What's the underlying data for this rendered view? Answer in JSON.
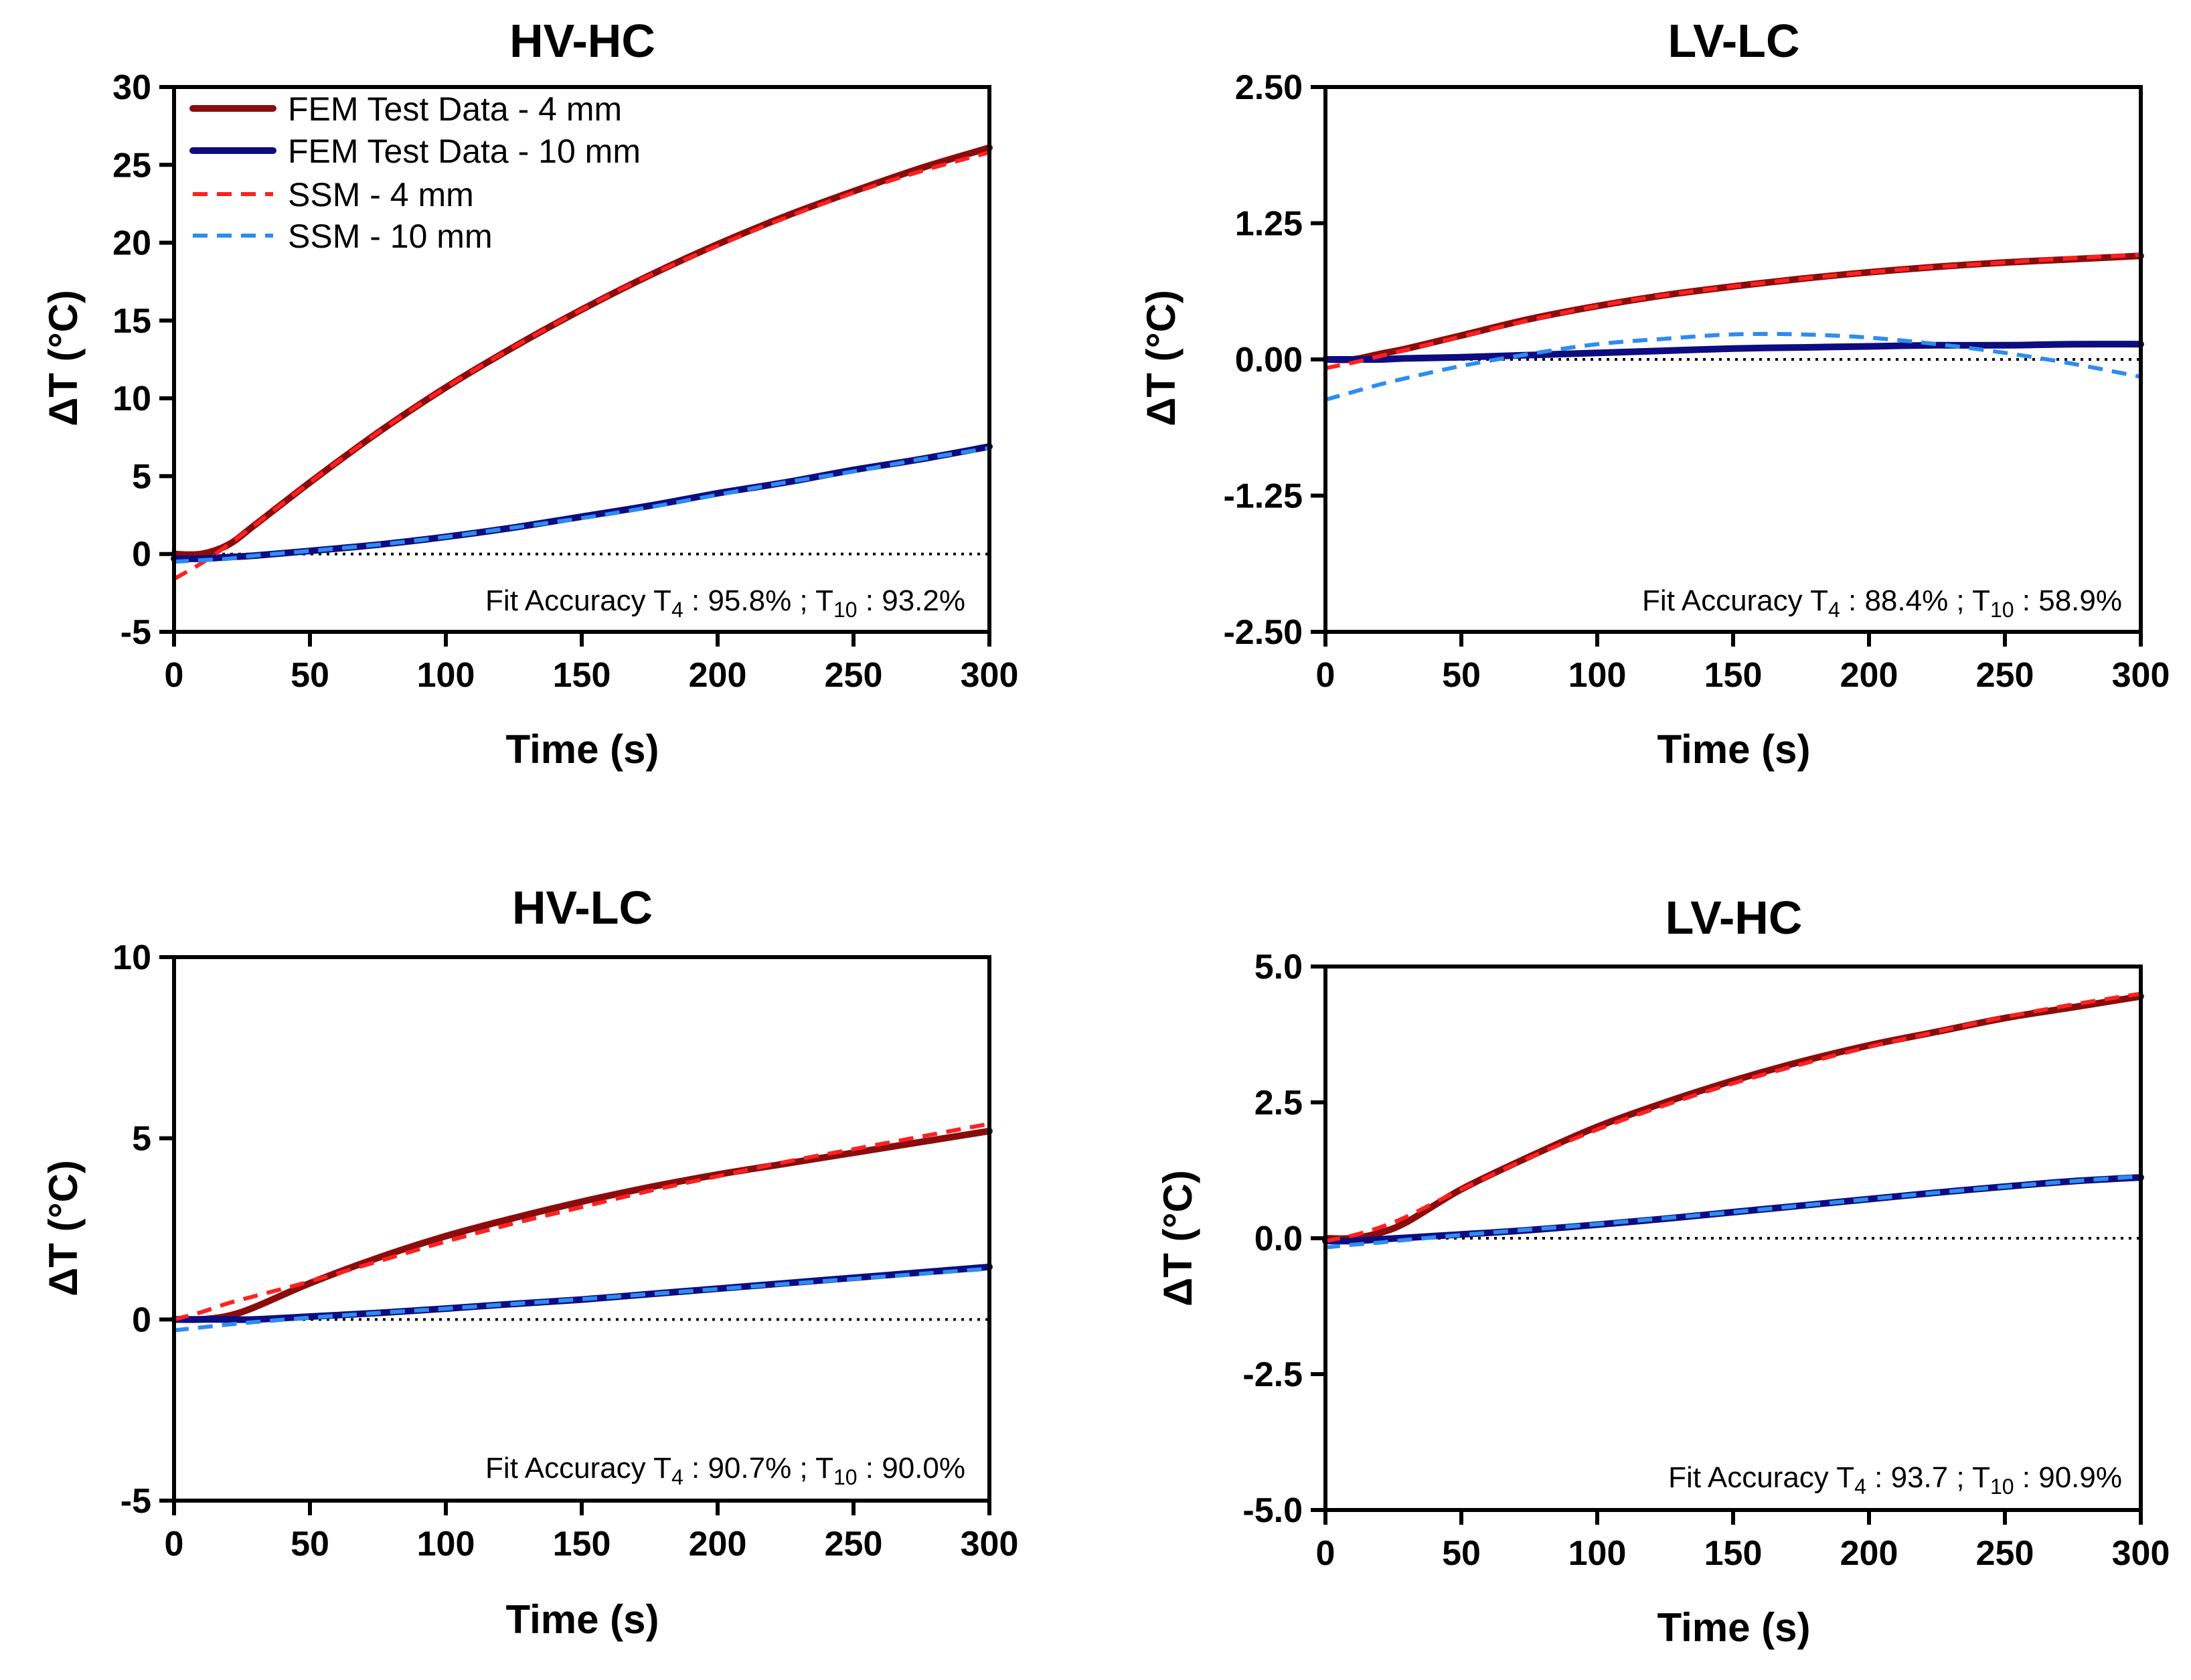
{
  "colors": {
    "fem_4mm": "#8b0c0c",
    "fem_10mm": "#0d0c80",
    "ssm_4mm": "#ff2020",
    "ssm_10mm": "#2e8cf0",
    "axis": "#000000",
    "zero_line": "#000000"
  },
  "legend": {
    "items": [
      {
        "label": "FEM Test Data - 4 mm",
        "series": "fem_4mm"
      },
      {
        "label": "FEM Test Data - 10 mm",
        "series": "fem_10mm"
      },
      {
        "label": "SSM - 4 mm",
        "series": "ssm_4mm"
      },
      {
        "label": "SSM - 10 mm",
        "series": "ssm_10mm"
      }
    ]
  },
  "chart_data": [
    {
      "id": "hv-hc",
      "type": "line",
      "title": "HV-HC",
      "xlabel": "Time (s)",
      "ylabel": "ΔT (°C)",
      "xlim": [
        0,
        300
      ],
      "ylim": [
        -5,
        30
      ],
      "x_ticks": [
        "0",
        "50",
        "100",
        "150",
        "200",
        "250",
        "300"
      ],
      "y_ticks": [
        "-5",
        "0",
        "5",
        "10",
        "15",
        "20",
        "25",
        "30"
      ],
      "zero_line": true,
      "accuracy": {
        "prefix": "Fit Accuracy T",
        "sub4": "4",
        "val4": " : 95.8% ;  T",
        "sub10": "10",
        "val10": " : 93.2%"
      },
      "x": [
        0,
        10,
        20,
        30,
        50,
        75,
        100,
        125,
        150,
        175,
        200,
        225,
        250,
        275,
        300
      ],
      "series": [
        {
          "name": "FEM Test Data - 4 mm",
          "key": "fem_4mm",
          "values": [
            0,
            0,
            0.6,
            1.9,
            4.6,
            7.8,
            10.7,
            13.3,
            15.7,
            17.9,
            19.9,
            21.7,
            23.3,
            24.8,
            26.1
          ]
        },
        {
          "name": "FEM Test Data - 10 mm",
          "key": "fem_10mm",
          "values": [
            -0.3,
            -0.3,
            -0.2,
            -0.1,
            0.2,
            0.6,
            1.1,
            1.7,
            2.4,
            3.1,
            3.9,
            4.6,
            5.4,
            6.1,
            6.9
          ]
        },
        {
          "name": "SSM - 4 mm",
          "key": "ssm_4mm",
          "values": [
            -1.6,
            -0.6,
            0.6,
            1.9,
            4.6,
            7.8,
            10.7,
            13.3,
            15.7,
            17.9,
            19.8,
            21.6,
            23.2,
            24.6,
            25.8
          ]
        },
        {
          "name": "SSM - 10 mm",
          "key": "ssm_10mm",
          "values": [
            -0.5,
            -0.4,
            -0.3,
            -0.1,
            0.2,
            0.6,
            1.1,
            1.7,
            2.3,
            3.0,
            3.8,
            4.6,
            5.3,
            6.1,
            6.8
          ]
        }
      ]
    },
    {
      "id": "lv-lc",
      "type": "line",
      "title": "LV-LC",
      "xlabel": "Time (s)",
      "ylabel": "ΔT (°C)",
      "xlim": [
        0,
        300
      ],
      "ylim": [
        -2.5,
        2.5
      ],
      "x_ticks": [
        "0",
        "50",
        "100",
        "150",
        "200",
        "250",
        "300"
      ],
      "y_ticks": [
        "-2.50",
        "-1.25",
        "0.00",
        "1.25",
        "2.50"
      ],
      "zero_line": true,
      "accuracy": {
        "prefix": "Fit Accuracy T",
        "sub4": "4",
        "val4": " : 88.4% ;  T",
        "sub10": "10",
        "val10": " : 58.9%"
      },
      "x": [
        0,
        10,
        20,
        30,
        50,
        75,
        100,
        125,
        150,
        175,
        200,
        225,
        250,
        275,
        300
      ],
      "series": [
        {
          "name": "FEM Test Data - 4 mm",
          "key": "fem_4mm",
          "values": [
            0,
            0,
            0.05,
            0.1,
            0.22,
            0.37,
            0.49,
            0.59,
            0.67,
            0.74,
            0.8,
            0.85,
            0.89,
            0.92,
            0.95
          ]
        },
        {
          "name": "FEM Test Data - 10 mm",
          "key": "fem_10mm",
          "values": [
            0,
            0,
            0,
            0.01,
            0.02,
            0.04,
            0.06,
            0.08,
            0.1,
            0.11,
            0.12,
            0.13,
            0.13,
            0.14,
            0.14
          ]
        },
        {
          "name": "SSM - 4 mm",
          "key": "ssm_4mm",
          "values": [
            -0.08,
            -0.03,
            0.03,
            0.09,
            0.21,
            0.36,
            0.49,
            0.59,
            0.67,
            0.74,
            0.8,
            0.85,
            0.89,
            0.93,
            0.96
          ]
        },
        {
          "name": "SSM - 10 mm",
          "key": "ssm_10mm",
          "values": [
            -0.37,
            -0.3,
            -0.23,
            -0.17,
            -0.06,
            0.05,
            0.14,
            0.19,
            0.23,
            0.23,
            0.2,
            0.14,
            0.06,
            -0.04,
            -0.16
          ]
        }
      ]
    },
    {
      "id": "hv-lc",
      "type": "line",
      "title": "HV-LC",
      "xlabel": "Time (s)",
      "ylabel": "ΔT (°C)",
      "xlim": [
        0,
        300
      ],
      "ylim": [
        -5,
        10
      ],
      "x_ticks": [
        "0",
        "50",
        "100",
        "150",
        "200",
        "250",
        "300"
      ],
      "y_ticks": [
        "-5",
        "0",
        "5",
        "10"
      ],
      "zero_line": true,
      "accuracy": {
        "prefix": "Fit Accuracy T",
        "sub4": "4",
        "val4": " : 90.7% ;  T",
        "sub10": "10",
        "val10": " : 90.0%"
      },
      "x": [
        0,
        10,
        20,
        30,
        50,
        75,
        100,
        125,
        150,
        175,
        200,
        225,
        250,
        275,
        300
      ],
      "series": [
        {
          "name": "FEM Test Data - 4 mm",
          "key": "fem_4mm",
          "values": [
            0,
            0,
            0.1,
            0.35,
            1.0,
            1.7,
            2.3,
            2.8,
            3.25,
            3.65,
            4.0,
            4.3,
            4.6,
            4.9,
            5.2
          ]
        },
        {
          "name": "FEM Test Data - 10 mm",
          "key": "fem_10mm",
          "values": [
            0,
            0,
            0,
            0,
            0.08,
            0.18,
            0.3,
            0.43,
            0.55,
            0.7,
            0.85,
            1.0,
            1.15,
            1.3,
            1.45
          ]
        },
        {
          "name": "SSM - 4 mm",
          "key": "ssm_4mm",
          "values": [
            0,
            0.2,
            0.45,
            0.65,
            1.05,
            1.6,
            2.15,
            2.65,
            3.1,
            3.55,
            3.95,
            4.35,
            4.7,
            5.05,
            5.4
          ]
        },
        {
          "name": "SSM - 10 mm",
          "key": "ssm_10mm",
          "values": [
            -0.3,
            -0.22,
            -0.14,
            -0.07,
            0.05,
            0.18,
            0.3,
            0.43,
            0.56,
            0.7,
            0.84,
            0.98,
            1.12,
            1.26,
            1.4
          ]
        }
      ]
    },
    {
      "id": "lv-hc",
      "type": "line",
      "title": "LV-HC",
      "xlabel": "Time (s)",
      "ylabel": "ΔT (°C)",
      "xlim": [
        0,
        300
      ],
      "ylim": [
        -5,
        5
      ],
      "x_ticks": [
        "0",
        "50",
        "100",
        "150",
        "200",
        "250",
        "300"
      ],
      "y_ticks": [
        "-5.0",
        "-2.5",
        "0.0",
        "2.5",
        "5.0"
      ],
      "zero_line": true,
      "accuracy": {
        "prefix": "Fit Accuracy T",
        "sub4": "4",
        "val4": " : 93.7 ;  T",
        "sub10": "10",
        "val10": " : 90.9%"
      },
      "x": [
        0,
        10,
        20,
        30,
        50,
        75,
        100,
        125,
        150,
        175,
        200,
        225,
        250,
        275,
        300
      ],
      "series": [
        {
          "name": "FEM Test Data - 4 mm",
          "key": "fem_4mm",
          "values": [
            0,
            0,
            0.1,
            0.3,
            0.9,
            1.5,
            2.05,
            2.5,
            2.9,
            3.25,
            3.55,
            3.8,
            4.05,
            4.25,
            4.45
          ]
        },
        {
          "name": "FEM Test Data - 10 mm",
          "key": "fem_10mm",
          "values": [
            -0.05,
            -0.05,
            -0.02,
            0.01,
            0.07,
            0.15,
            0.25,
            0.36,
            0.48,
            0.6,
            0.72,
            0.84,
            0.95,
            1.05,
            1.12
          ]
        },
        {
          "name": "SSM - 4 mm",
          "key": "ssm_4mm",
          "values": [
            -0.05,
            0.05,
            0.2,
            0.4,
            0.9,
            1.48,
            2.0,
            2.45,
            2.85,
            3.2,
            3.52,
            3.8,
            4.07,
            4.3,
            4.5
          ]
        },
        {
          "name": "SSM - 10 mm",
          "key": "ssm_10mm",
          "values": [
            -0.17,
            -0.12,
            -0.08,
            -0.03,
            0.06,
            0.16,
            0.26,
            0.37,
            0.48,
            0.6,
            0.72,
            0.84,
            0.95,
            1.05,
            1.14
          ]
        }
      ]
    }
  ]
}
